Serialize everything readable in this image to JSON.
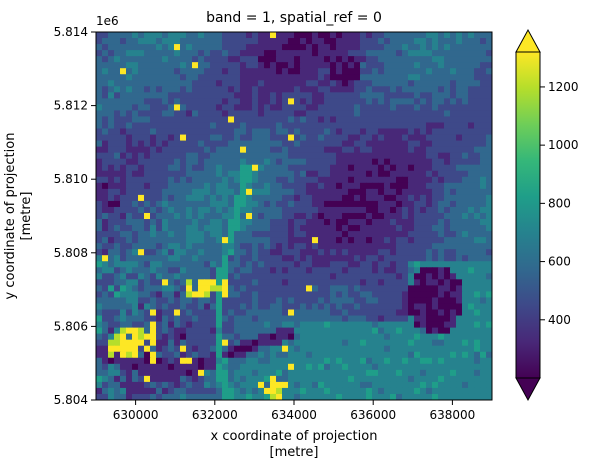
{
  "chart_data": {
    "type": "heatmap",
    "title": "band = 1, spatial_ref = 0",
    "xlabel": "x coordinate of projection\n[metre]",
    "ylabel": "y coordinate of projection\n[metre]",
    "xlim": [
      629000,
      639000
    ],
    "ylim": [
      5.804,
      5.814
    ],
    "y_offset_text": "1e6",
    "x_ticks": [
      630000,
      632000,
      634000,
      636000,
      638000
    ],
    "x_tick_labels": [
      "630000",
      "632000",
      "634000",
      "636000",
      "638000"
    ],
    "y_ticks": [
      5.804,
      5.806,
      5.808,
      5.81,
      5.812,
      5.814
    ],
    "y_tick_labels": [
      "5.804",
      "5.806",
      "5.808",
      "5.810",
      "5.812",
      "5.814"
    ],
    "colorbar": {
      "colormap": "viridis",
      "extend": "both",
      "vmin": 200,
      "vmax": 1320,
      "ticks": [
        400,
        600,
        800,
        1000,
        1200
      ],
      "tick_labels": [
        "400",
        "600",
        "800",
        "1000",
        "1200"
      ]
    },
    "grid": false
  },
  "colors": {
    "viridis": [
      "#440154",
      "#482878",
      "#3e4989",
      "#31688e",
      "#26828e",
      "#1f9e89",
      "#35b779",
      "#6ece58",
      "#b5de2b",
      "#fde725"
    ]
  }
}
